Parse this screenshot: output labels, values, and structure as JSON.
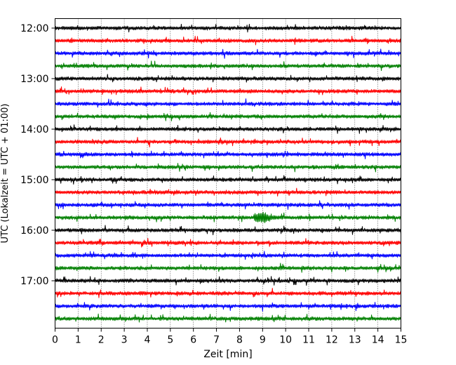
{
  "chart_data": {
    "type": "line",
    "title": "",
    "xlabel": "Zeit  [min]",
    "ylabel": "UTC (Lokalzeit = UTC + 01:00)",
    "xlim": [
      0,
      15
    ],
    "x_ticks": [
      0,
      1,
      2,
      3,
      4,
      5,
      6,
      7,
      8,
      9,
      10,
      11,
      12,
      13,
      14,
      15
    ],
    "x_tick_labels": [
      "0",
      "1",
      "2",
      "3",
      "4",
      "5",
      "6",
      "7",
      "8",
      "9",
      "10",
      "11",
      "12",
      "13",
      "14",
      "15"
    ],
    "y_tick_labels": [
      "12:00",
      "13:00",
      "14:00",
      "15:00",
      "16:00",
      "17:00"
    ],
    "grid": "vertical dotted",
    "trace_colors": [
      "#000000",
      "#ff0000",
      "#0000ff",
      "#008000"
    ],
    "traces": [
      {
        "start": "12:00",
        "color": "#000000"
      },
      {
        "start": "12:15",
        "color": "#ff0000"
      },
      {
        "start": "12:30",
        "color": "#0000ff"
      },
      {
        "start": "12:45",
        "color": "#008000"
      },
      {
        "start": "13:00",
        "color": "#000000"
      },
      {
        "start": "13:15",
        "color": "#ff0000"
      },
      {
        "start": "13:30",
        "color": "#0000ff"
      },
      {
        "start": "13:45",
        "color": "#008000"
      },
      {
        "start": "14:00",
        "color": "#000000"
      },
      {
        "start": "14:15",
        "color": "#ff0000"
      },
      {
        "start": "14:30",
        "color": "#0000ff"
      },
      {
        "start": "14:45",
        "color": "#008000"
      },
      {
        "start": "15:00",
        "color": "#000000"
      },
      {
        "start": "15:15",
        "color": "#ff0000"
      },
      {
        "start": "15:30",
        "color": "#0000ff"
      },
      {
        "start": "15:45",
        "color": "#008000"
      },
      {
        "start": "16:00",
        "color": "#000000"
      },
      {
        "start": "16:15",
        "color": "#ff0000"
      },
      {
        "start": "16:30",
        "color": "#0000ff"
      },
      {
        "start": "16:45",
        "color": "#008000"
      },
      {
        "start": "17:00",
        "color": "#000000"
      },
      {
        "start": "17:15",
        "color": "#ff0000"
      },
      {
        "start": "17:30",
        "color": "#0000ff"
      },
      {
        "start": "17:45",
        "color": "#008000"
      }
    ]
  }
}
